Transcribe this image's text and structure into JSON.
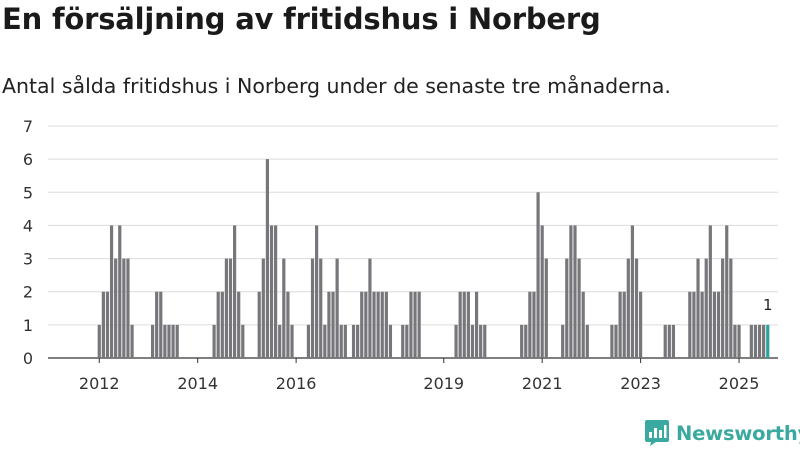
{
  "header": {
    "title": "En försäljning av fritidshus i Norberg",
    "subtitle": "Antal sålda fritidshus i Norberg under de senaste tre månaderna."
  },
  "branding": {
    "logo_text": "Newsworthy"
  },
  "colors": {
    "bar": "#77767b",
    "highlight": "#2aa39a",
    "grid": "#dcdcdc",
    "axis": "#333333",
    "logo": "#3aa9a0"
  },
  "chart_data": {
    "type": "bar",
    "title": "En försäljning av fritidshus i Norberg",
    "subtitle": "Antal sålda fritidshus i Norberg under de senaste tre månaderna.",
    "xlabel": "",
    "ylabel": "",
    "ylim": [
      0,
      7
    ],
    "yticks": [
      0,
      1,
      2,
      3,
      4,
      5,
      6,
      7
    ],
    "x_start": "2011-01",
    "x_end": "2025-10",
    "x_ticks": [
      {
        "date": "2012-01",
        "label": "2012"
      },
      {
        "date": "2014-01",
        "label": "2014"
      },
      {
        "date": "2016-01",
        "label": "2016"
      },
      {
        "date": "2019-01",
        "label": "2019"
      },
      {
        "date": "2021-01",
        "label": "2021"
      },
      {
        "date": "2023-01",
        "label": "2023"
      },
      {
        "date": "2025-01",
        "label": "2025"
      }
    ],
    "grid": true,
    "series": [
      {
        "data": [
          {
            "x": "2012-01",
            "y": 1
          },
          {
            "x": "2012-02",
            "y": 2
          },
          {
            "x": "2012-03",
            "y": 2
          },
          {
            "x": "2012-04",
            "y": 4
          },
          {
            "x": "2012-05",
            "y": 3
          },
          {
            "x": "2012-06",
            "y": 4
          },
          {
            "x": "2012-07",
            "y": 3
          },
          {
            "x": "2012-08",
            "y": 3
          },
          {
            "x": "2012-09",
            "y": 1
          },
          {
            "x": "2013-02",
            "y": 1
          },
          {
            "x": "2013-03",
            "y": 2
          },
          {
            "x": "2013-04",
            "y": 2
          },
          {
            "x": "2013-05",
            "y": 1
          },
          {
            "x": "2013-06",
            "y": 1
          },
          {
            "x": "2013-07",
            "y": 1
          },
          {
            "x": "2013-08",
            "y": 1
          },
          {
            "x": "2014-05",
            "y": 1
          },
          {
            "x": "2014-06",
            "y": 2
          },
          {
            "x": "2014-07",
            "y": 2
          },
          {
            "x": "2014-08",
            "y": 3
          },
          {
            "x": "2014-09",
            "y": 3
          },
          {
            "x": "2014-10",
            "y": 4
          },
          {
            "x": "2014-11",
            "y": 2
          },
          {
            "x": "2014-12",
            "y": 1
          },
          {
            "x": "2015-04",
            "y": 2
          },
          {
            "x": "2015-05",
            "y": 3
          },
          {
            "x": "2015-06",
            "y": 6
          },
          {
            "x": "2015-07",
            "y": 4
          },
          {
            "x": "2015-08",
            "y": 4
          },
          {
            "x": "2015-09",
            "y": 1
          },
          {
            "x": "2015-10",
            "y": 3
          },
          {
            "x": "2015-11",
            "y": 2
          },
          {
            "x": "2015-12",
            "y": 1
          },
          {
            "x": "2016-04",
            "y": 1
          },
          {
            "x": "2016-05",
            "y": 3
          },
          {
            "x": "2016-06",
            "y": 4
          },
          {
            "x": "2016-07",
            "y": 3
          },
          {
            "x": "2016-08",
            "y": 1
          },
          {
            "x": "2016-09",
            "y": 2
          },
          {
            "x": "2016-10",
            "y": 2
          },
          {
            "x": "2016-11",
            "y": 3
          },
          {
            "x": "2016-12",
            "y": 1
          },
          {
            "x": "2017-01",
            "y": 1
          },
          {
            "x": "2017-03",
            "y": 1
          },
          {
            "x": "2017-04",
            "y": 1
          },
          {
            "x": "2017-05",
            "y": 2
          },
          {
            "x": "2017-06",
            "y": 2
          },
          {
            "x": "2017-07",
            "y": 3
          },
          {
            "x": "2017-08",
            "y": 2
          },
          {
            "x": "2017-09",
            "y": 2
          },
          {
            "x": "2017-10",
            "y": 2
          },
          {
            "x": "2017-11",
            "y": 2
          },
          {
            "x": "2017-12",
            "y": 1
          },
          {
            "x": "2018-03",
            "y": 1
          },
          {
            "x": "2018-04",
            "y": 1
          },
          {
            "x": "2018-05",
            "y": 2
          },
          {
            "x": "2018-06",
            "y": 2
          },
          {
            "x": "2018-07",
            "y": 2
          },
          {
            "x": "2019-04",
            "y": 1
          },
          {
            "x": "2019-05",
            "y": 2
          },
          {
            "x": "2019-06",
            "y": 2
          },
          {
            "x": "2019-07",
            "y": 2
          },
          {
            "x": "2019-08",
            "y": 1
          },
          {
            "x": "2019-09",
            "y": 2
          },
          {
            "x": "2019-10",
            "y": 1
          },
          {
            "x": "2019-11",
            "y": 1
          },
          {
            "x": "2020-08",
            "y": 1
          },
          {
            "x": "2020-09",
            "y": 1
          },
          {
            "x": "2020-10",
            "y": 2
          },
          {
            "x": "2020-11",
            "y": 2
          },
          {
            "x": "2020-12",
            "y": 5
          },
          {
            "x": "2021-01",
            "y": 4
          },
          {
            "x": "2021-02",
            "y": 3
          },
          {
            "x": "2021-06",
            "y": 1
          },
          {
            "x": "2021-07",
            "y": 3
          },
          {
            "x": "2021-08",
            "y": 4
          },
          {
            "x": "2021-09",
            "y": 4
          },
          {
            "x": "2021-10",
            "y": 3
          },
          {
            "x": "2021-11",
            "y": 2
          },
          {
            "x": "2021-12",
            "y": 1
          },
          {
            "x": "2022-06",
            "y": 1
          },
          {
            "x": "2022-07",
            "y": 1
          },
          {
            "x": "2022-08",
            "y": 2
          },
          {
            "x": "2022-09",
            "y": 2
          },
          {
            "x": "2022-10",
            "y": 3
          },
          {
            "x": "2022-11",
            "y": 4
          },
          {
            "x": "2022-12",
            "y": 3
          },
          {
            "x": "2023-01",
            "y": 2
          },
          {
            "x": "2023-07",
            "y": 1
          },
          {
            "x": "2023-08",
            "y": 1
          },
          {
            "x": "2023-09",
            "y": 1
          },
          {
            "x": "2024-01",
            "y": 2
          },
          {
            "x": "2024-02",
            "y": 2
          },
          {
            "x": "2024-03",
            "y": 3
          },
          {
            "x": "2024-04",
            "y": 2
          },
          {
            "x": "2024-05",
            "y": 3
          },
          {
            "x": "2024-06",
            "y": 4
          },
          {
            "x": "2024-07",
            "y": 2
          },
          {
            "x": "2024-08",
            "y": 2
          },
          {
            "x": "2024-09",
            "y": 3
          },
          {
            "x": "2024-10",
            "y": 4
          },
          {
            "x": "2024-11",
            "y": 3
          },
          {
            "x": "2024-12",
            "y": 1
          },
          {
            "x": "2025-01",
            "y": 1
          },
          {
            "x": "2025-04",
            "y": 1
          },
          {
            "x": "2025-05",
            "y": 1
          },
          {
            "x": "2025-06",
            "y": 1
          },
          {
            "x": "2025-07",
            "y": 1
          },
          {
            "x": "2025-08",
            "y": 1
          }
        ]
      }
    ],
    "annotations": [
      {
        "x": "2025-08",
        "text": "1",
        "highlight": true
      }
    ]
  }
}
